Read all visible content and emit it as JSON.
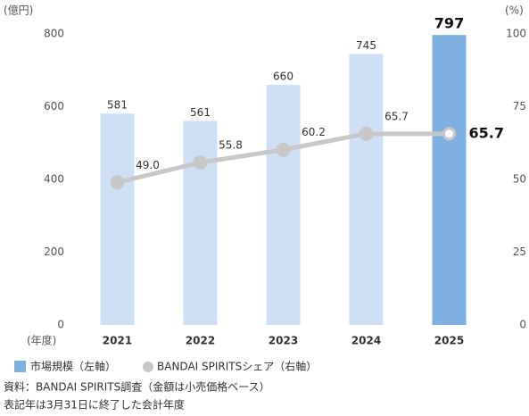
{
  "chart_data": {
    "type": "bar-line",
    "y_label": "(億円)",
    "y2_label": "(%)",
    "x_label": "(年度)",
    "categories": [
      "2021",
      "2022",
      "2023",
      "2024",
      "2025"
    ],
    "series": [
      {
        "name": "市場規模（左軸）",
        "type": "bar",
        "color": "#7fb0e0",
        "colors": [
          "#cfe0f5",
          "#cfe0f5",
          "#cfe0f5",
          "#cfe0f5",
          "#7fb0e0"
        ],
        "values": [
          581,
          561,
          660,
          745,
          797
        ]
      },
      {
        "name": "BANDAI SPIRITSシェア（右軸）",
        "type": "line",
        "axis": "y2",
        "color": "#c8c8c8",
        "values": [
          49,
          55.8,
          60.2,
          65.7,
          65.7
        ],
        "value_labels": [
          "49.0",
          "55.8",
          "60.2",
          "65.7",
          "65.7"
        ]
      }
    ],
    "ylim": [
      0,
      800
    ],
    "yticks": [
      0,
      200,
      400,
      600,
      800
    ],
    "y2lim": [
      0,
      100
    ],
    "y2ticks": [
      0,
      25,
      50,
      75,
      100
    ],
    "notes": [
      "資料：BANDAI SPIRITS調査（金額は小売価格ベース）",
      "表記年は3月31日に終了した会計年度"
    ]
  }
}
